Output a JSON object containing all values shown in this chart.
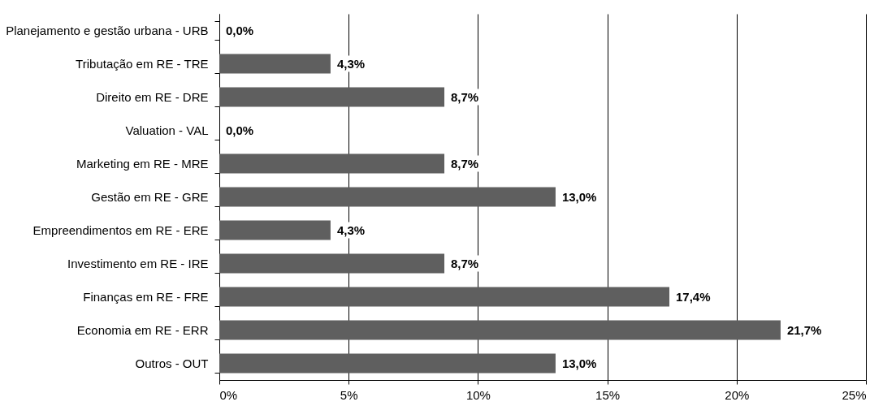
{
  "chart_data": {
    "type": "bar",
    "orientation": "horizontal",
    "categories": [
      "Planejamento e gestão urbana - URB",
      "Tributação em RE - TRE",
      "Direito em RE - DRE",
      "Valuation - VAL",
      "Marketing em RE - MRE",
      "Gestão em RE - GRE",
      "Empreendimentos em RE - ERE",
      "Investimento em RE - IRE",
      "Finanças em RE - FRE",
      "Economia em RE - ERR",
      "Outros - OUT"
    ],
    "values": [
      0.0,
      4.3,
      8.7,
      0.0,
      8.7,
      13.0,
      4.3,
      8.7,
      17.4,
      21.7,
      13.0
    ],
    "value_labels": [
      "0,0%",
      "4,3%",
      "8,7%",
      "0,0%",
      "8,7%",
      "13,0%",
      "4,3%",
      "8,7%",
      "17,4%",
      "21,7%",
      "13,0%"
    ],
    "color": "#5f5f5f",
    "xlim": [
      0,
      25
    ],
    "xticks": [
      {
        "value": 0,
        "label": "0%"
      },
      {
        "value": 5,
        "label": "5%"
      },
      {
        "value": 10,
        "label": "10%"
      },
      {
        "value": 15,
        "label": "15%"
      },
      {
        "value": 20,
        "label": "20%"
      },
      {
        "value": 25,
        "label": "25%"
      }
    ],
    "grid": "x"
  }
}
